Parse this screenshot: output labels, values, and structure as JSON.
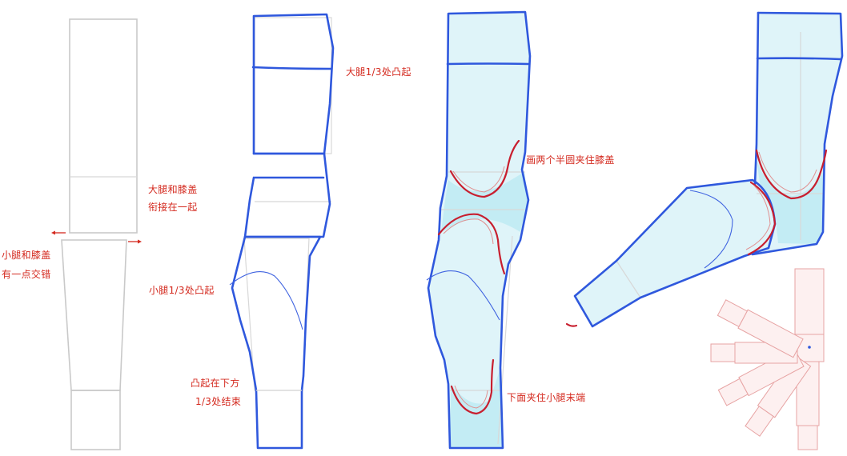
{
  "labels": {
    "fig1_knee_join": "大腿和膝盖",
    "fig1_knee_join_2": "衔接在一起",
    "fig1_calf_overlap": "小腿和膝盖",
    "fig1_calf_overlap_2": "有一点交错",
    "fig2_thigh_bulge": "大腿1/3处凸起",
    "fig2_calf_bulge": "小腿1/3处凸起",
    "fig2_bulge_end": "凸起在下方",
    "fig2_bulge_end_2": "1/3处结束",
    "fig3_knee_semicircles": "画两个半圆夹住膝盖",
    "fig3_calf_end": "下面夹住小腿末端"
  },
  "colors": {
    "annotation": "#d42a1f",
    "outline_blue": "#2f58dd",
    "fill_cyan": "#dff4f9",
    "knee_red": "#c81f2f",
    "guide_gray": "#c9c9c9"
  },
  "icons": {
    "arrow_left": "left-arrow-icon",
    "arrow_right": "right-arrow-icon"
  }
}
